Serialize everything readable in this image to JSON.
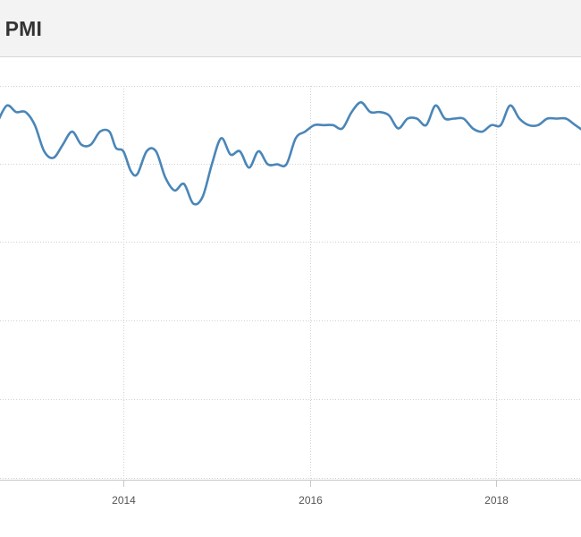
{
  "header": {
    "title": "s PMI"
  },
  "chart_data": {
    "type": "line",
    "title": "s PMI",
    "xlabel": "",
    "ylabel": "",
    "x_tick_labels": [
      "2014",
      "2016",
      "2018"
    ],
    "x_ticks": [
      2014,
      2016,
      2018
    ],
    "xlim": [
      2012.65,
      2019.0
    ],
    "ylim": [
      -2,
      4
    ],
    "grid": true,
    "legend": "none",
    "line_color": "#4a86b8",
    "series": [
      {
        "x": [
          2012.65,
          2012.75,
          2012.85,
          2012.95,
          2013.05,
          2013.15,
          2013.25,
          2013.35,
          2013.45,
          2013.55,
          2013.65,
          2013.75,
          2013.85,
          2013.92,
          2014.0,
          2014.08,
          2014.15,
          2014.25,
          2014.35,
          2014.45,
          2014.55,
          2014.65,
          2014.75,
          2014.85,
          2014.95,
          2015.05,
          2015.15,
          2015.25,
          2015.35,
          2015.45,
          2015.55,
          2015.65,
          2015.75,
          2015.85,
          2015.95,
          2016.05,
          2016.15,
          2016.25,
          2016.35,
          2016.45,
          2016.55,
          2016.65,
          2016.75,
          2016.85,
          2016.95,
          2017.05,
          2017.15,
          2017.25,
          2017.35,
          2017.45,
          2017.55,
          2017.65,
          2017.75,
          2017.85,
          2017.95,
          2018.05,
          2018.15,
          2018.25,
          2018.35,
          2018.45,
          2018.55,
          2018.65,
          2018.75,
          2018.85,
          2018.95
        ],
        "y": [
          3.45,
          3.7,
          3.6,
          3.6,
          3.4,
          3.0,
          2.9,
          3.1,
          3.3,
          3.1,
          3.1,
          3.3,
          3.3,
          3.05,
          3.0,
          2.7,
          2.65,
          3.0,
          3.0,
          2.6,
          2.4,
          2.5,
          2.2,
          2.3,
          2.8,
          3.2,
          2.95,
          3.0,
          2.75,
          3.0,
          2.8,
          2.8,
          2.8,
          3.2,
          3.3,
          3.4,
          3.4,
          3.4,
          3.35,
          3.6,
          3.75,
          3.6,
          3.6,
          3.55,
          3.35,
          3.5,
          3.5,
          3.4,
          3.7,
          3.5,
          3.5,
          3.5,
          3.35,
          3.3,
          3.4,
          3.4,
          3.7,
          3.5,
          3.4,
          3.4,
          3.5,
          3.5,
          3.5,
          3.4,
          3.3
        ]
      }
    ]
  }
}
